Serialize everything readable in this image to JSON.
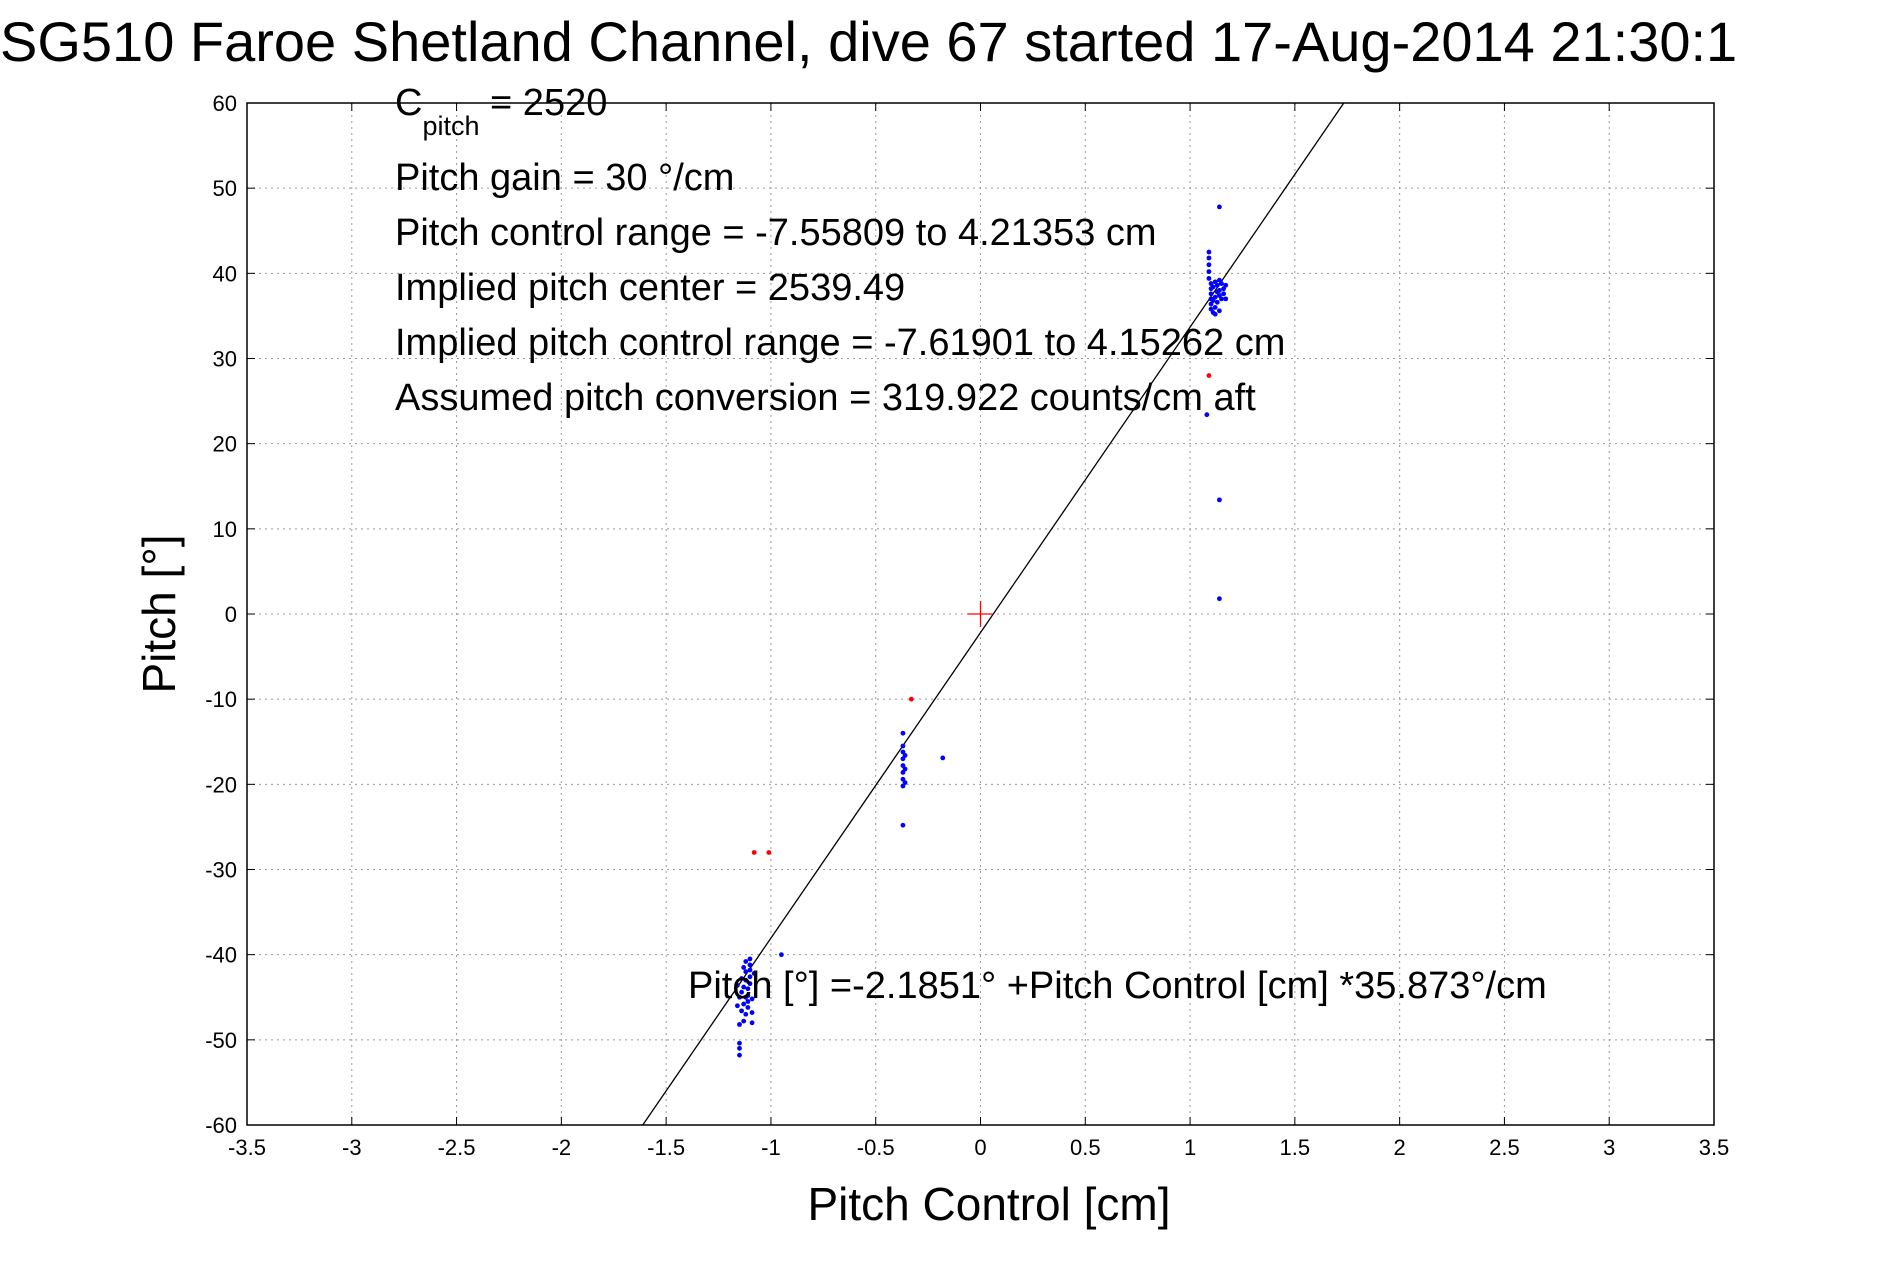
{
  "chart_data": {
    "type": "scatter",
    "title": "SG510 Faroe Shetland Channel, dive 67 started 17-Aug-2014 21:30:1",
    "xlabel": "Pitch Control [cm]",
    "ylabel": "Pitch [°]",
    "xlim": [
      -3.5,
      3.5
    ],
    "ylim": [
      -60,
      60
    ],
    "grid": true,
    "x_ticks": [
      -3.5,
      -3,
      -2.5,
      -2,
      -1.5,
      -1,
      -0.5,
      0,
      0.5,
      1,
      1.5,
      2,
      2.5,
      3,
      3.5
    ],
    "x_tick_labels": [
      "-3.5",
      "-3",
      "-2.5",
      "-2",
      "-1.5",
      "-1",
      "-0.5",
      "0",
      "0.5",
      "1",
      "1.5",
      "2",
      "2.5",
      "3",
      "3.5"
    ],
    "y_ticks": [
      -60,
      -50,
      -40,
      -30,
      -20,
      -10,
      0,
      10,
      20,
      30,
      40,
      50,
      60
    ],
    "y_tick_labels": [
      "-60",
      "-50",
      "-40",
      "-30",
      "-20",
      "-10",
      "0",
      "10",
      "20",
      "30",
      "40",
      "50",
      "60"
    ],
    "annotations": {
      "c_pitch_main": "C",
      "c_pitch_sub": "pitch",
      "c_pitch_value": " = 2520",
      "pitch_gain": "Pitch gain = 30 °/cm",
      "pitch_control_range": "Pitch control range = -7.55809 to 4.21353 cm",
      "implied_pitch_center": "Implied pitch center = 2539.49",
      "implied_pitch_control_range": "Implied pitch control range = -7.61901 to 4.15262 cm",
      "assumed_pitch_conversion": "Assumed pitch conversion = 319.922 counts/cm aft",
      "fit_equation": "Pitch [°] =-2.1851° +Pitch Control [cm] *35.873°/cm"
    },
    "fit_line": {
      "intercept": -2.1851,
      "slope": 35.873
    },
    "center_marker": {
      "x": 0,
      "y": 0,
      "color": "#ff0000"
    },
    "colors": {
      "included": "#0000ff",
      "excluded": "#ff0000",
      "fit_line": "#000000",
      "grid": "#999999"
    },
    "series": [
      {
        "color": "#0000ff",
        "points": [
          [
            1.09,
            42.5
          ],
          [
            1.09,
            41.8
          ],
          [
            1.09,
            41.0
          ],
          [
            1.09,
            40.2
          ],
          [
            1.09,
            39.4
          ],
          [
            1.1,
            38.8
          ],
          [
            1.1,
            38.2
          ],
          [
            1.1,
            37.6
          ],
          [
            1.1,
            37.0
          ],
          [
            1.1,
            36.4
          ],
          [
            1.1,
            35.8
          ],
          [
            1.11,
            35.4
          ],
          [
            1.11,
            36.8
          ],
          [
            1.11,
            38.4
          ],
          [
            1.12,
            39.0
          ],
          [
            1.12,
            37.2
          ],
          [
            1.12,
            36.0
          ],
          [
            1.12,
            35.2
          ],
          [
            1.13,
            38.6
          ],
          [
            1.13,
            37.8
          ],
          [
            1.13,
            36.6
          ],
          [
            1.14,
            39.2
          ],
          [
            1.14,
            38.0
          ],
          [
            1.14,
            37.4
          ],
          [
            1.14,
            35.6
          ],
          [
            1.15,
            38.8
          ],
          [
            1.15,
            37.0
          ],
          [
            1.16,
            38.2
          ],
          [
            1.16,
            37.6
          ],
          [
            1.17,
            37.0
          ],
          [
            1.17,
            38.6
          ],
          [
            1.14,
            47.8
          ],
          [
            1.08,
            23.4
          ],
          [
            1.14,
            13.4
          ],
          [
            1.14,
            1.8
          ],
          [
            -0.37,
            -14.0
          ],
          [
            -0.37,
            -15.5
          ],
          [
            -0.37,
            -16.2
          ],
          [
            -0.37,
            -17.0
          ],
          [
            -0.37,
            -17.8
          ],
          [
            -0.37,
            -18.6
          ],
          [
            -0.37,
            -19.4
          ],
          [
            -0.37,
            -20.2
          ],
          [
            -0.36,
            -16.6
          ],
          [
            -0.36,
            -18.2
          ],
          [
            -0.36,
            -19.8
          ],
          [
            -0.37,
            -24.8
          ],
          [
            -0.18,
            -16.9
          ],
          [
            -0.95,
            -40.0
          ],
          [
            -1.1,
            -40.5
          ],
          [
            -1.1,
            -41.2
          ],
          [
            -1.1,
            -41.8
          ],
          [
            -1.1,
            -42.6
          ],
          [
            -1.1,
            -43.4
          ],
          [
            -1.11,
            -44.0
          ],
          [
            -1.11,
            -44.8
          ],
          [
            -1.11,
            -45.5
          ],
          [
            -1.11,
            -46.2
          ],
          [
            -1.12,
            -40.8
          ],
          [
            -1.12,
            -42.0
          ],
          [
            -1.12,
            -43.0
          ],
          [
            -1.12,
            -45.0
          ],
          [
            -1.12,
            -47.0
          ],
          [
            -1.13,
            -41.5
          ],
          [
            -1.13,
            -43.8
          ],
          [
            -1.13,
            -45.8
          ],
          [
            -1.13,
            -47.8
          ],
          [
            -1.14,
            -42.8
          ],
          [
            -1.14,
            -44.4
          ],
          [
            -1.14,
            -46.6
          ],
          [
            -1.15,
            -45.0
          ],
          [
            -1.15,
            -48.2
          ],
          [
            -1.15,
            -50.4
          ],
          [
            -1.15,
            -51.0
          ],
          [
            -1.15,
            -51.8
          ],
          [
            -1.09,
            -45.2
          ],
          [
            -1.09,
            -46.8
          ],
          [
            -1.09,
            -48.0
          ],
          [
            -1.08,
            -42.2
          ],
          [
            -1.16,
            -43.6
          ],
          [
            -1.16,
            -46.0
          ]
        ]
      },
      {
        "color": "#ff0000",
        "points": [
          [
            1.09,
            28.0
          ],
          [
            -0.33,
            -10.0
          ],
          [
            -1.08,
            -28.0
          ],
          [
            -1.01,
            -28.0
          ]
        ]
      }
    ]
  }
}
